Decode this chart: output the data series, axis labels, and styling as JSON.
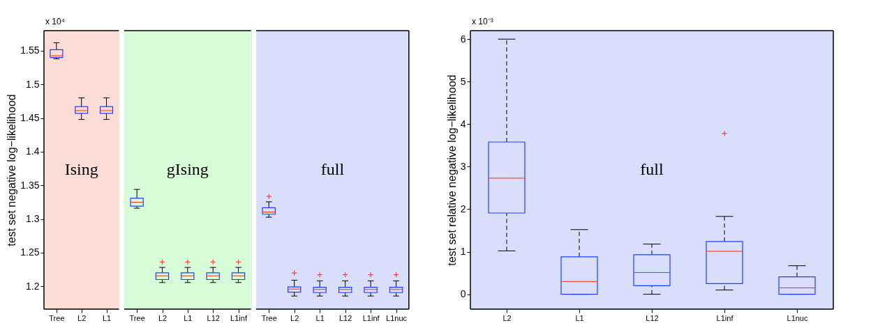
{
  "chart_data": [
    {
      "type": "box",
      "ylabel": "test set negative log−likelihood",
      "categories": [
        "Tree",
        "L2",
        "L1"
      ],
      "boxes": [
        {
          "low": 1.538,
          "q1": 1.54,
          "median": 1.5426,
          "q3": 1.5516,
          "high": 1.562
        },
        {
          "low": 1.448,
          "q1": 1.457,
          "median": 1.461,
          "q3": 1.467,
          "high": 1.48
        },
        {
          "low": 1.448,
          "q1": 1.457,
          "median": 1.461,
          "q3": 1.467,
          "high": 1.48
        }
      ],
      "ylim": [
        1.166,
        1.58
      ],
      "yticks": [
        1.2,
        1.25,
        1.3,
        1.35,
        1.4,
        1.45,
        1.5,
        1.55
      ],
      "bands": [
        {
          "axis": "x",
          "from": "Tree",
          "to": "L1",
          "label": "Ising",
          "color": "#fcdcd6"
        }
      ],
      "annotations": [
        "x 10⁴"
      ],
      "grid": false,
      "line_style": "solid"
    },
    {
      "type": "box",
      "categories": [
        "Tree",
        "L2",
        "L1",
        "L12",
        "L1inf"
      ],
      "boxes": [
        {
          "low": 1.316,
          "q1": 1.319,
          "median": 1.325,
          "q3": 1.331,
          "high": 1.344
        },
        {
          "low": 1.2055,
          "q1": 1.21,
          "median": 1.2155,
          "q3": 1.22,
          "high": 1.228,
          "outliers": [
            1.236
          ]
        },
        {
          "low": 1.2055,
          "q1": 1.21,
          "median": 1.2155,
          "q3": 1.22,
          "high": 1.228,
          "outliers": [
            1.236
          ]
        },
        {
          "low": 1.2055,
          "q1": 1.21,
          "median": 1.2155,
          "q3": 1.22,
          "high": 1.228,
          "outliers": [
            1.236
          ]
        },
        {
          "low": 1.2055,
          "q1": 1.21,
          "median": 1.2155,
          "q3": 1.22,
          "high": 1.228,
          "outliers": [
            1.236
          ]
        }
      ],
      "ylim": [
        1.166,
        1.58
      ],
      "yticks": [
        1.2,
        1.25,
        1.3,
        1.35,
        1.4,
        1.45,
        1.5,
        1.55
      ],
      "tick_labels": "x",
      "bands": [
        {
          "axis": "x",
          "from": "Tree",
          "to": "L1inf",
          "label": "gIsing",
          "color": "#d8fcd8"
        }
      ],
      "grid": false,
      "line_style": "solid"
    },
    {
      "type": "box",
      "categories": [
        "Tree",
        "L2",
        "L1",
        "L12",
        "L1inf",
        "L1nuc"
      ],
      "boxes": [
        {
          "low": 1.3026,
          "q1": 1.307,
          "median": 1.3103,
          "q3": 1.3168,
          "high": 1.3255,
          "outliers": [
            1.3335
          ]
        },
        {
          "low": 1.1855,
          "q1": 1.1913,
          "median": 1.1958,
          "q3": 1.199,
          "high": 1.209,
          "outliers": [
            1.2197
          ]
        },
        {
          "low": 1.1855,
          "q1": 1.1906,
          "median": 1.1952,
          "q3": 1.1984,
          "high": 1.208,
          "outliers": [
            1.217
          ]
        },
        {
          "low": 1.1855,
          "q1": 1.1906,
          "median": 1.1952,
          "q3": 1.1984,
          "high": 1.208,
          "outliers": [
            1.217
          ]
        },
        {
          "low": 1.1855,
          "q1": 1.1906,
          "median": 1.1952,
          "q3": 1.1984,
          "high": 1.208,
          "outliers": [
            1.217
          ]
        },
        {
          "low": 1.1855,
          "q1": 1.1906,
          "median": 1.1952,
          "q3": 1.1984,
          "high": 1.208,
          "outliers": [
            1.217
          ]
        }
      ],
      "ylim": [
        1.166,
        1.58
      ],
      "yticks": [
        1.2,
        1.25,
        1.3,
        1.35,
        1.4,
        1.45,
        1.5,
        1.55
      ],
      "tick_labels": "x",
      "bands": [
        {
          "axis": "x",
          "from": "Tree",
          "to": "L1nuc",
          "label": "full",
          "color": "#d8defc"
        }
      ],
      "grid": false,
      "line_style": "solid"
    },
    {
      "type": "box",
      "ylabel": "test set relative negative log−likelihood",
      "categories": [
        "L2",
        "L1",
        "L12",
        "L1inf",
        "L1nuc"
      ],
      "boxes": [
        {
          "low": 1.02,
          "q1": 1.91,
          "median": 2.73,
          "q3": 3.58,
          "high": 6.0
        },
        {
          "low": 0,
          "q1": 0,
          "median": 0.3,
          "q3": 0.88,
          "high": 1.52
        },
        {
          "low": 0,
          "q1": 0.2,
          "median": 0.51,
          "q3": 0.93,
          "high": 1.18
        },
        {
          "low": 0.1,
          "q1": 0.25,
          "median": 1.01,
          "q3": 1.24,
          "high": 1.83,
          "outliers": [
            3.78
          ]
        },
        {
          "low": 0,
          "q1": 0,
          "median": 0.15,
          "q3": 0.41,
          "high": 0.67
        }
      ],
      "ylim": [
        -0.35,
        6.2
      ],
      "yticks": [
        0,
        1,
        2,
        3,
        4,
        5,
        6
      ],
      "bands": [
        {
          "axis": "x",
          "from": "L2",
          "to": "L1nuc",
          "label": "full",
          "color": "#d8defc"
        }
      ],
      "annotations": [
        "x 10⁻³"
      ],
      "grid": false,
      "line_style": "dashed"
    }
  ]
}
